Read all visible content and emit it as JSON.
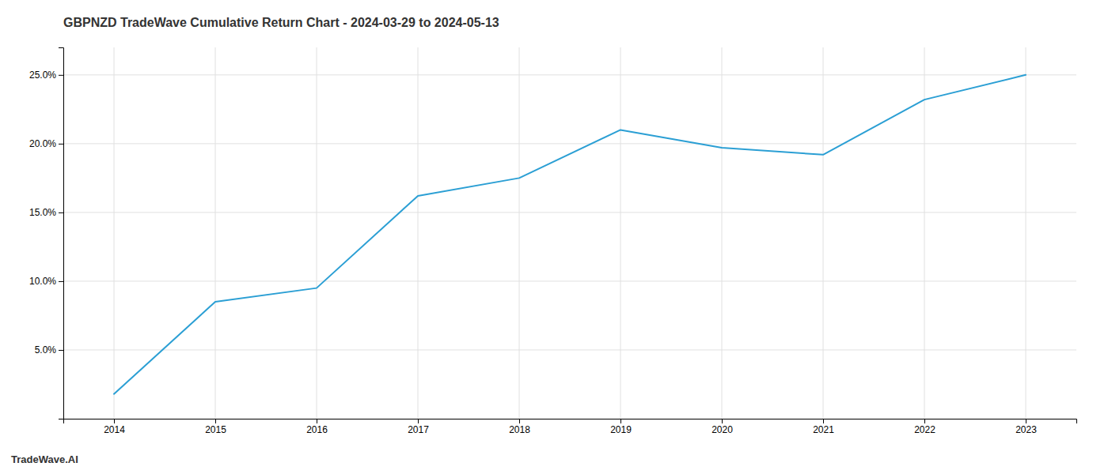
{
  "chart_data": {
    "type": "line",
    "title": "GBPNZD TradeWave Cumulative Return Chart - 2024-03-29 to 2024-05-13",
    "annotations": [
      "TradeWave.AI"
    ],
    "x": [
      2014,
      2015,
      2016,
      2017,
      2018,
      2019,
      2020,
      2021,
      2022,
      2023
    ],
    "values": [
      1.8,
      8.5,
      9.5,
      16.2,
      17.5,
      21.0,
      19.7,
      19.2,
      23.2,
      25.0
    ],
    "color": "#2b9fd4",
    "xlim": [
      2013.5,
      2023.5
    ],
    "ylim": [
      0,
      27
    ],
    "xticks": [
      2014,
      2015,
      2016,
      2017,
      2018,
      2019,
      2020,
      2021,
      2022,
      2023
    ],
    "yticks": [
      {
        "value": 5.0,
        "label": "5.0%"
      },
      {
        "value": 10.0,
        "label": "10.0%"
      },
      {
        "value": 15.0,
        "label": "15.0%"
      },
      {
        "value": 20.0,
        "label": "20.0%"
      },
      {
        "value": 25.0,
        "label": "25.0%"
      }
    ],
    "grid": true
  }
}
